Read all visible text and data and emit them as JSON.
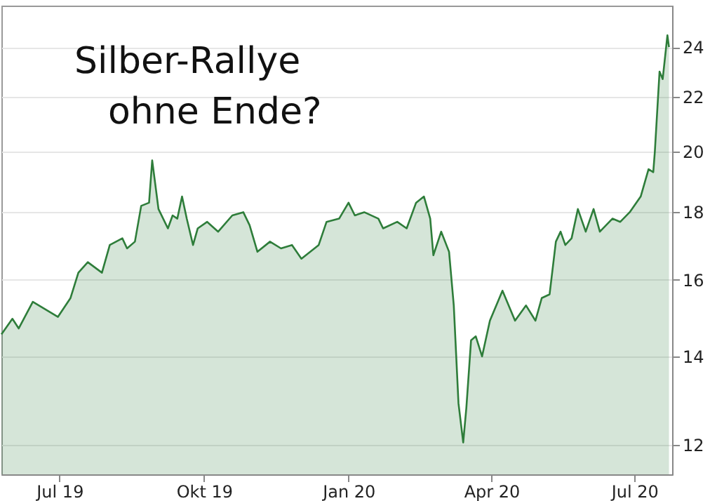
{
  "chart_data": {
    "type": "area",
    "title": "Silber-Rallye ohne Ende?",
    "x": [
      "2019-05-25",
      "2019-06-01",
      "2019-06-05",
      "2019-06-14",
      "2019-06-30",
      "2019-07-08",
      "2019-07-13",
      "2019-07-19",
      "2019-07-28",
      "2019-08-02",
      "2019-08-10",
      "2019-08-13",
      "2019-08-18",
      "2019-08-22",
      "2019-08-27",
      "2019-08-29",
      "2019-09-02",
      "2019-09-08",
      "2019-09-11",
      "2019-09-14",
      "2019-09-17",
      "2019-09-20",
      "2019-09-24",
      "2019-09-27",
      "2019-10-03",
      "2019-10-10",
      "2019-10-19",
      "2019-10-26",
      "2019-10-30",
      "2019-11-04",
      "2019-11-12",
      "2019-11-19",
      "2019-11-26",
      "2019-12-02",
      "2019-12-13",
      "2019-12-18",
      "2019-12-26",
      "2020-01-01",
      "2020-01-05",
      "2020-01-11",
      "2020-01-20",
      "2020-01-23",
      "2020-02-01",
      "2020-02-07",
      "2020-02-13",
      "2020-02-18",
      "2020-02-22",
      "2020-02-24",
      "2020-02-29",
      "2020-03-05",
      "2020-03-08",
      "2020-03-11",
      "2020-03-14",
      "2020-03-16",
      "2020-03-19",
      "2020-03-22",
      "2020-03-26",
      "2020-03-31",
      "2020-04-08",
      "2020-04-16",
      "2020-04-23",
      "2020-04-29",
      "2020-05-03",
      "2020-05-08",
      "2020-05-12",
      "2020-05-15",
      "2020-05-18",
      "2020-05-22",
      "2020-05-26",
      "2020-05-31",
      "2020-06-05",
      "2020-06-09",
      "2020-06-17",
      "2020-06-22",
      "2020-06-28",
      "2020-07-05",
      "2020-07-10",
      "2020-07-13",
      "2020-07-14",
      "2020-07-17",
      "2020-07-19",
      "2020-07-22",
      "2020-07-23"
    ],
    "series": [
      {
        "color": "#2e7d3a",
        "values": [
          14.55,
          14.95,
          14.7,
          15.4,
          15.0,
          15.5,
          16.2,
          16.5,
          16.2,
          17.0,
          17.2,
          16.9,
          17.1,
          18.2,
          18.3,
          19.7,
          18.1,
          17.5,
          17.9,
          17.8,
          18.5,
          17.8,
          17.0,
          17.5,
          17.7,
          17.4,
          17.9,
          18.0,
          17.6,
          16.8,
          17.1,
          16.9,
          17.0,
          16.6,
          17.0,
          17.7,
          17.8,
          18.3,
          17.9,
          18.0,
          17.8,
          17.5,
          17.7,
          17.5,
          18.3,
          18.5,
          17.8,
          16.7,
          17.4,
          16.8,
          15.3,
          12.9,
          12.05,
          12.8,
          14.4,
          14.5,
          14.0,
          14.9,
          15.7,
          14.9,
          15.3,
          14.9,
          15.5,
          15.6,
          17.1,
          17.4,
          17.0,
          17.2,
          18.1,
          17.4,
          18.1,
          17.4,
          17.8,
          17.7,
          18.0,
          18.5,
          19.4,
          19.3,
          20.0,
          23.0,
          22.7,
          24.5,
          24.0
        ]
      }
    ],
    "xlim": [
      "2019-05-25",
      "2020-07-25"
    ],
    "xticks": [
      {
        "value": "2019-07-01",
        "label": "Jul 19"
      },
      {
        "value": "2019-10-01",
        "label": "Okt 19"
      },
      {
        "value": "2020-01-01",
        "label": "Jan 20"
      },
      {
        "value": "2020-04-01",
        "label": "Apr 20"
      },
      {
        "value": "2020-07-01",
        "label": "Jul 20"
      }
    ],
    "ylim": [
      11.4,
      25.8
    ],
    "yticks": [
      12,
      14,
      16,
      18,
      20,
      22,
      24
    ],
    "log": "y",
    "grid": "y"
  }
}
